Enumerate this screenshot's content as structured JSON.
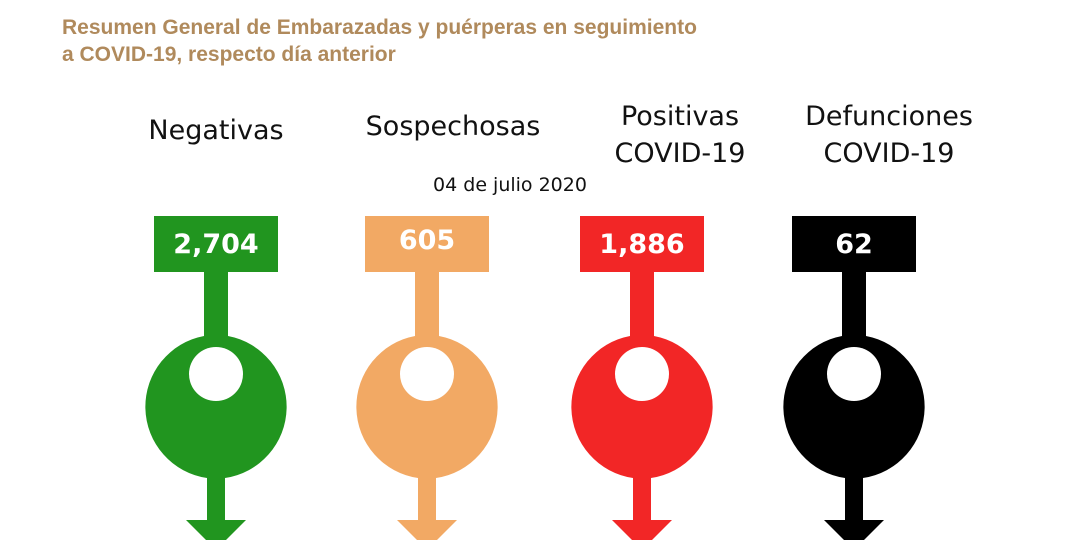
{
  "header": {
    "title_line1": "Resumen General de Embarazadas y puérperas en seguimiento",
    "title_line2": "a COVID-19, respecto día anterior"
  },
  "date": "04 de julio 2020",
  "categories": [
    {
      "label_line1": "Negativas",
      "label_line2": "",
      "value": "2,704",
      "color": "#21951f",
      "value_color": "#ffffff",
      "shape": "arrow-down-with-circle"
    },
    {
      "label_line1": "Sospechosas",
      "label_line2": "",
      "value": "605",
      "color": "#f2a964",
      "value_color": "#ffffff",
      "shape": "arrow-down-with-circle"
    },
    {
      "label_line1": "Positivas",
      "label_line2": "COVID-19",
      "value": "1,886",
      "color": "#f22626",
      "value_color": "#ffffff",
      "shape": "arrow-down-with-circle"
    },
    {
      "label_line1": "Defunciones",
      "label_line2": "COVID-19",
      "value": "62",
      "color": "#000000",
      "value_color": "#ffffff",
      "shape": "arrow-down-with-circle"
    }
  ]
}
